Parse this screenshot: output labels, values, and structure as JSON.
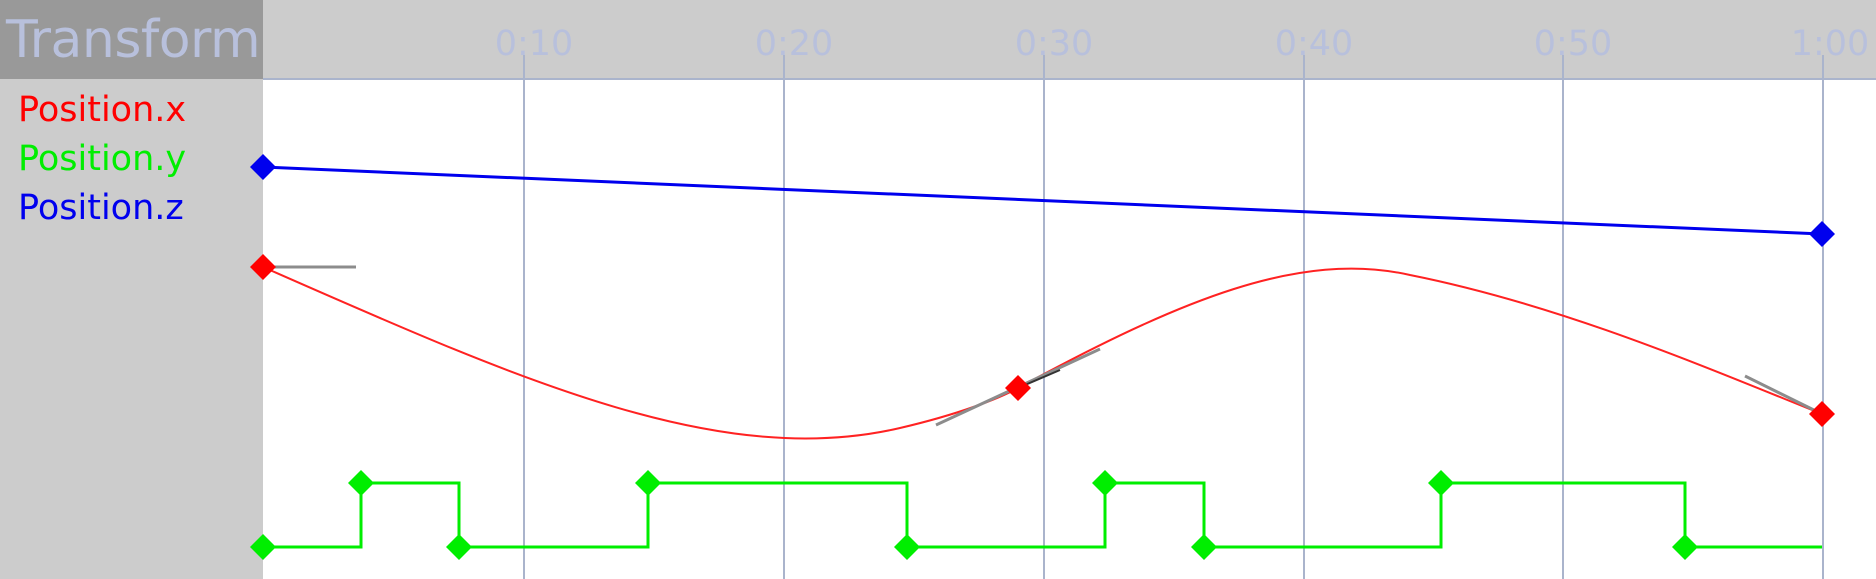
{
  "panel": {
    "title": "Transform"
  },
  "colors": {
    "sidebar": "#cccccc",
    "title_bg": "#999999",
    "title_text": "#b8c0dc",
    "gridline": "#aab4cc",
    "handle": "#8c8c8c"
  },
  "ruler": {
    "labels": [
      "0:10",
      "0:20",
      "0:30",
      "0:40",
      "0:50",
      "1:00"
    ]
  },
  "tracks": [
    {
      "id": "x",
      "label": "Position.x",
      "color": "#ff0000",
      "interpolation": "bezier",
      "keyframes": [
        "0:00",
        "0:29",
        "1:00"
      ]
    },
    {
      "id": "y",
      "label": "Position.y",
      "color": "#00ee00",
      "interpolation": "step",
      "keyframes": [
        "0:00",
        "0:04",
        "0:08",
        "0:15",
        "0:25",
        "0:32",
        "0:36",
        "0:45",
        "0:55"
      ]
    },
    {
      "id": "z",
      "label": "Position.z",
      "color": "#0000ee",
      "interpolation": "linear",
      "keyframes": [
        "0:00",
        "1:00"
      ]
    }
  ]
}
